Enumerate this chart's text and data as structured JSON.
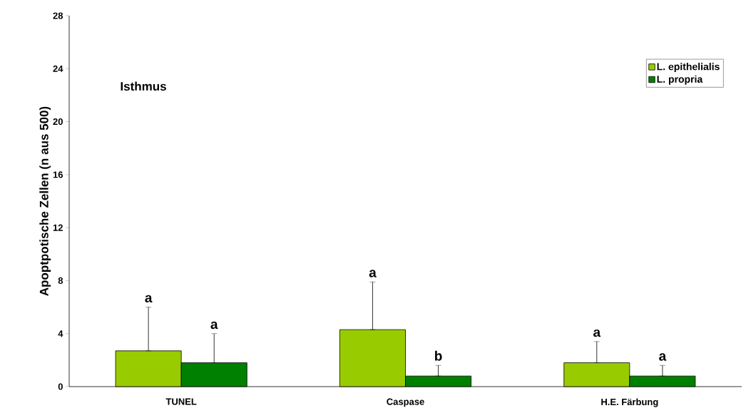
{
  "chart_data": {
    "type": "bar",
    "ylabel": "Apoptpotische Zellen (n aus 500)",
    "categories": [
      "TUNEL",
      "Caspase",
      "H.E. Färbung"
    ],
    "series": [
      {
        "name": "L. epithelialis",
        "color": "#99cc00",
        "values": [
          2.7,
          4.3,
          1.8
        ],
        "errors": [
          [
            2.7,
            6.0
          ],
          [
            4.3,
            7.9
          ],
          [
            1.8,
            3.4
          ]
        ]
      },
      {
        "name": "L. propria",
        "color": "#008000",
        "values": [
          1.8,
          0.8,
          0.8
        ],
        "errors": [
          [
            1.8,
            4.0
          ],
          [
            0.8,
            1.6
          ],
          [
            0.8,
            1.6
          ]
        ]
      }
    ],
    "annotations": [
      "Isthmus",
      "a",
      "a",
      "a",
      "b",
      "a",
      "a"
    ],
    "ylim": [
      0,
      28
    ],
    "yticks": [
      0,
      4,
      8,
      12,
      16,
      20,
      24,
      28
    ],
    "legend": "top right",
    "grid": false
  }
}
